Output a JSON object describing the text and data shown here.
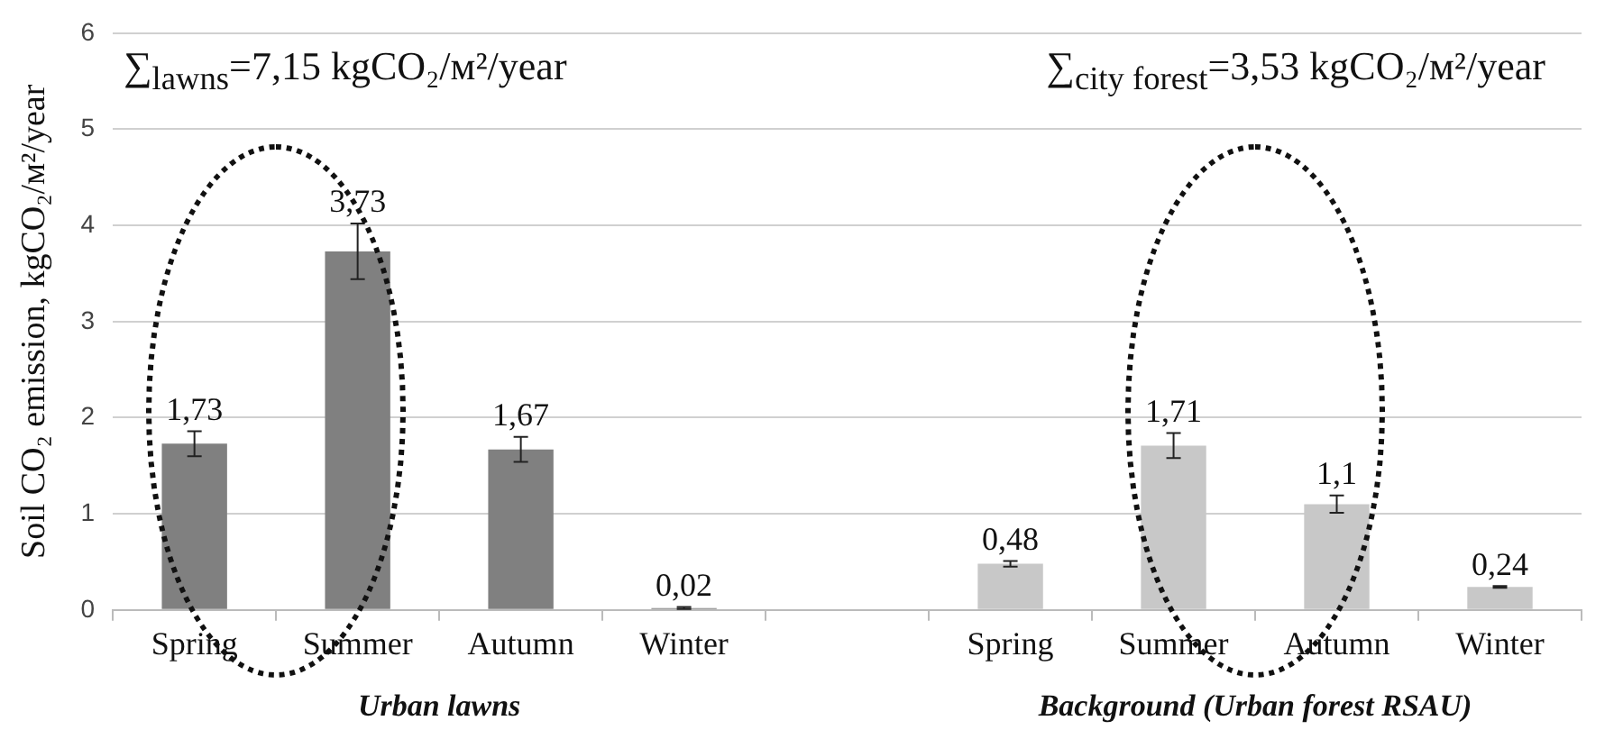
{
  "chart_data": {
    "type": "bar",
    "ylabel": "Soil CO₂ emission, kgCO₂/м²/year",
    "categories": [
      "Spring",
      "Summer",
      "Autumn",
      "Winter",
      null,
      "Spring",
      "Summer",
      "Autumn",
      "Winter"
    ],
    "series": [
      {
        "color": "#808080",
        "values": [
          1.73,
          3.73,
          1.67,
          0.02,
          null,
          null,
          null,
          null,
          null
        ],
        "errors": [
          0.13,
          0.29,
          0.13,
          0.01,
          null,
          null,
          null,
          null,
          null
        ],
        "value_labels": [
          "1,73",
          "3,73",
          "1,67",
          "0,02",
          null,
          null,
          null,
          null,
          null
        ]
      },
      {
        "color": "#c8c8c8",
        "values": [
          null,
          null,
          null,
          null,
          null,
          0.48,
          1.71,
          1.1,
          0.24
        ],
        "errors": [
          null,
          null,
          null,
          null,
          null,
          0.03,
          0.13,
          0.09,
          0.01
        ],
        "value_labels": [
          null,
          null,
          null,
          null,
          null,
          "0,48",
          "1,71",
          "1,1",
          "0,24"
        ]
      }
    ],
    "ylim": [
      0,
      6
    ],
    "yticks": [
      0,
      1,
      2,
      3,
      4,
      5,
      6
    ],
    "grid": "y",
    "legend": false,
    "annotations": [
      "∑$_{lawns}$=7,15 kgCO₂/м²/year",
      "∑$_{city forest}$=3,53 kgCO₂/м²/year",
      "Urban lawns",
      "Background (Urban forest RSAU)"
    ]
  }
}
